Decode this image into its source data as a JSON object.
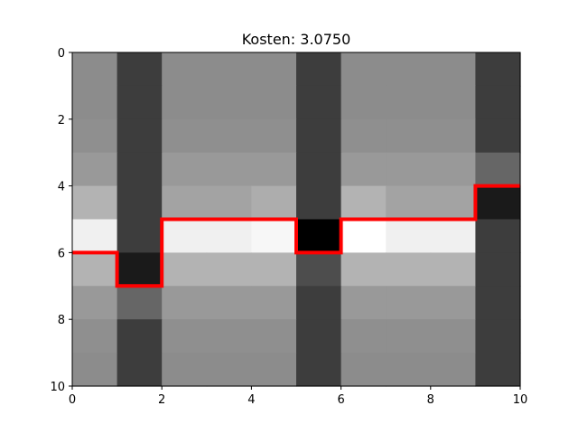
{
  "chart_data": {
    "type": "heatmap",
    "title": "Kosten: 3.0750",
    "xlabel": "",
    "ylabel": "",
    "xlim": [
      0,
      10
    ],
    "ylim": [
      10,
      0
    ],
    "x_ticks": [
      "0",
      "2",
      "4",
      "6",
      "8",
      "10"
    ],
    "y_ticks": [
      "0",
      "2",
      "4",
      "6",
      "8",
      "10"
    ],
    "colormap": "gray",
    "grid": false,
    "cells": [
      [
        0.55,
        0.24,
        0.55,
        0.55,
        0.55,
        0.24,
        0.55,
        0.55,
        0.55,
        0.24
      ],
      [
        0.55,
        0.24,
        0.55,
        0.55,
        0.55,
        0.24,
        0.55,
        0.55,
        0.55,
        0.24
      ],
      [
        0.56,
        0.24,
        0.56,
        0.56,
        0.56,
        0.24,
        0.56,
        0.56,
        0.56,
        0.24
      ],
      [
        0.6,
        0.24,
        0.6,
        0.6,
        0.6,
        0.24,
        0.6,
        0.6,
        0.6,
        0.4
      ],
      [
        0.7,
        0.24,
        0.64,
        0.64,
        0.68,
        0.24,
        0.7,
        0.64,
        0.64,
        0.1
      ],
      [
        0.94,
        0.24,
        0.94,
        0.94,
        0.97,
        0.0,
        1.0,
        0.94,
        0.94,
        0.24
      ],
      [
        0.7,
        0.1,
        0.7,
        0.7,
        0.7,
        0.3,
        0.7,
        0.7,
        0.7,
        0.24
      ],
      [
        0.6,
        0.4,
        0.6,
        0.6,
        0.6,
        0.24,
        0.6,
        0.6,
        0.6,
        0.24
      ],
      [
        0.56,
        0.24,
        0.56,
        0.56,
        0.56,
        0.24,
        0.56,
        0.56,
        0.56,
        0.24
      ],
      [
        0.55,
        0.24,
        0.55,
        0.55,
        0.55,
        0.24,
        0.55,
        0.55,
        0.55,
        0.24
      ]
    ],
    "path": {
      "color": "#ff0000",
      "x": [
        0,
        1,
        1,
        2,
        2,
        5,
        5,
        6,
        6,
        9,
        9,
        10
      ],
      "y": [
        6,
        6,
        7,
        7,
        5,
        5,
        6,
        6,
        5,
        5,
        4,
        4
      ]
    }
  }
}
